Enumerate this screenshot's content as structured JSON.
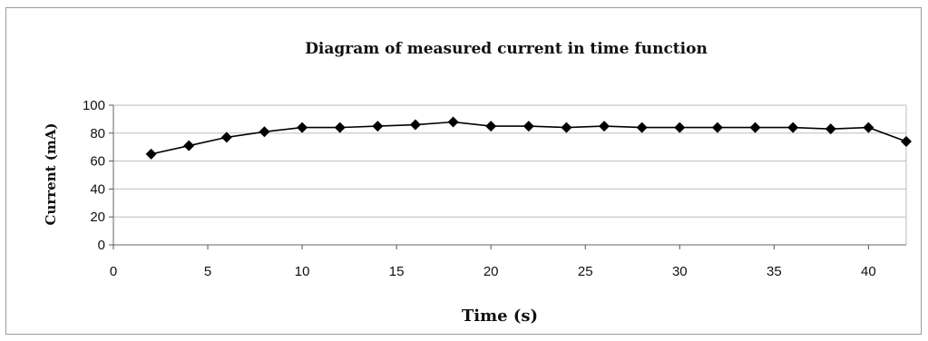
{
  "chart_data": {
    "type": "line",
    "title": "Diagram of measured current in time function",
    "xlabel": "Time (s)",
    "ylabel": "Current (mA)",
    "xlim": [
      0,
      42
    ],
    "ylim": [
      0,
      100
    ],
    "xticks": [
      "0",
      "5",
      "10",
      "15",
      "20",
      "25",
      "30",
      "35",
      "40"
    ],
    "yticks": [
      "0",
      "20",
      "40",
      "60",
      "80",
      "100"
    ],
    "grid": "horizontal",
    "legend": "none",
    "line_color": "#000000",
    "marker": "diamond",
    "series": [
      {
        "x": [
          2,
          4,
          6,
          8,
          10,
          12,
          14,
          16,
          18,
          20,
          22,
          24,
          26,
          28,
          30,
          32,
          34,
          36,
          38,
          40,
          42
        ],
        "y": [
          65,
          71,
          77,
          81,
          84,
          84,
          85,
          86,
          88,
          85,
          85,
          84,
          85,
          84,
          84,
          84,
          84,
          84,
          83,
          84,
          74
        ]
      }
    ]
  }
}
